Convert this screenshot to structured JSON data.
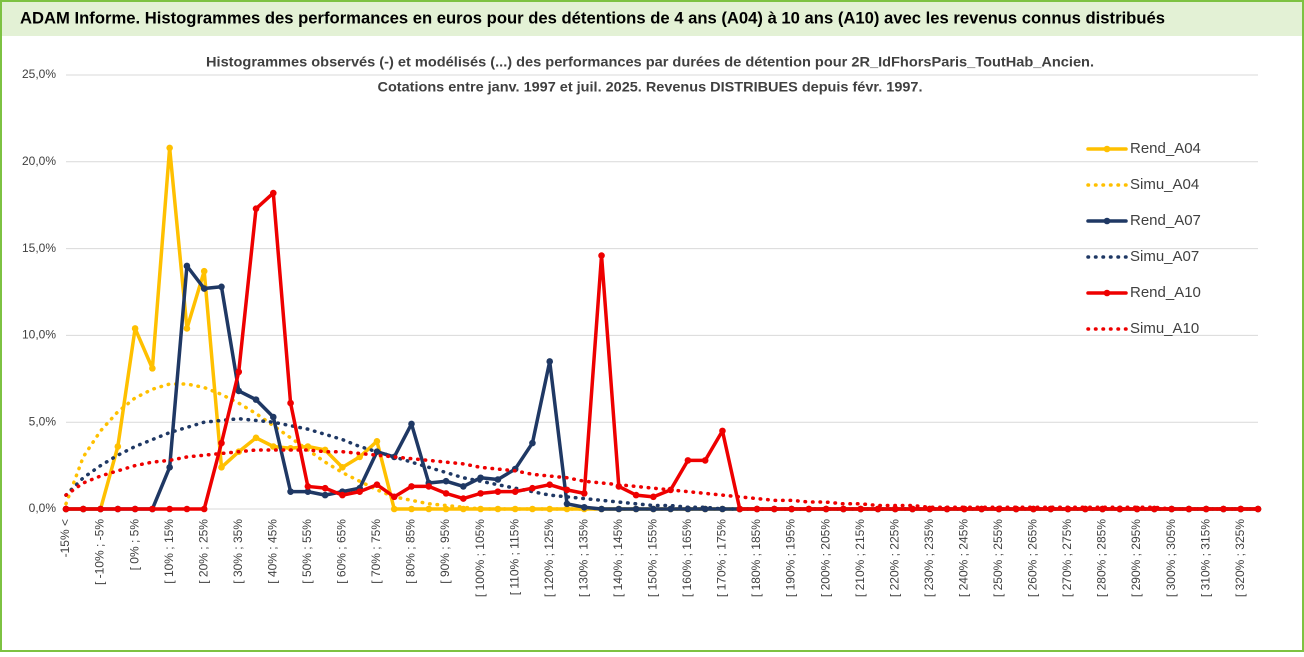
{
  "header": {
    "title": "ADAM Informe. Histogrammes des performances en euros pour des détentions de 4 ans (A04) à 10 ans (A10) avec les revenus connus distribués"
  },
  "chart_data": {
    "type": "line",
    "title": "Histogrammes observés (-) et modélisés (...) des performances par durées de détention pour 2R_IdFhorsParis_ToutHab_Ancien.",
    "subtitle": "Cotations entre janv. 1997 et juil. 2025. Revenus DISTRIBUES depuis févr. 1997.",
    "categories": [
      "-15% <",
      null,
      "[ -10% ; -5%",
      null,
      "[ 0% ; 5%",
      null,
      "[ 10% ; 15%",
      null,
      "[ 20% ; 25%",
      null,
      "[ 30% ; 35%",
      null,
      "[ 40% ; 45%",
      null,
      "[ 50% ; 55%",
      null,
      "[ 60% ; 65%",
      null,
      "[ 70% ; 75%",
      null,
      "[ 80% ; 85%",
      null,
      "[ 90% ; 95%",
      null,
      "[ 100% ; 105%",
      null,
      "[ 110% ; 115%",
      null,
      "[ 120% ; 125%",
      null,
      "[ 130% ; 135%",
      null,
      "[ 140% ; 145%",
      null,
      "[ 150% ; 155%",
      null,
      "[ 160% ; 165%",
      null,
      "[ 170% ; 175%",
      null,
      "[ 180% ; 185%",
      null,
      "[ 190% ; 195%",
      null,
      "[ 200% ; 205%",
      null,
      "[ 210% ; 215%",
      null,
      "[ 220% ; 225%",
      null,
      "[ 230% ; 235%",
      null,
      "[ 240% ; 245%",
      null,
      "[ 250% ; 255%",
      null,
      "[ 260% ; 265%",
      null,
      "[ 270% ; 275%",
      null,
      "[ 280% ; 285%",
      null,
      "[ 290% ; 295%",
      null,
      "[ 300% ; 305%",
      null,
      "[ 310% ; 315%",
      null,
      "[ 320% ; 325%",
      null
    ],
    "series": [
      {
        "name": "Rend_A04",
        "color": "#ffc000",
        "style": "solid",
        "marker": true,
        "values": [
          0,
          0,
          0,
          3.6,
          10.4,
          8.1,
          20.8,
          10.4,
          13.7,
          2.4,
          3.3,
          4.1,
          3.6,
          3.5,
          3.6,
          3.4,
          2.4,
          3.0,
          3.9,
          0,
          0,
          0,
          0,
          0,
          0,
          0,
          0,
          0,
          0,
          0,
          0,
          0,
          0,
          0,
          0,
          0,
          0,
          0,
          0,
          0,
          0,
          0,
          0,
          0,
          0,
          0,
          0,
          0,
          0,
          0,
          0,
          0,
          0,
          0,
          0,
          0,
          0,
          0,
          0,
          0,
          0,
          0,
          0,
          0,
          0,
          0,
          0,
          0,
          0,
          0
        ]
      },
      {
        "name": "Simu_A04",
        "color": "#ffc000",
        "style": "dotted",
        "marker": false,
        "values": [
          0.3,
          3.0,
          4.5,
          5.6,
          6.4,
          6.9,
          7.2,
          7.2,
          7.0,
          6.6,
          6.1,
          5.5,
          4.8,
          4.1,
          3.4,
          2.7,
          2.1,
          1.6,
          1.1,
          0.7,
          0.5,
          0.3,
          0.2,
          0.1,
          0,
          0,
          0,
          0,
          0,
          0,
          0,
          0,
          0,
          0,
          0,
          0,
          0,
          0,
          0,
          0,
          0,
          0,
          0,
          0,
          0,
          0,
          0,
          0,
          0,
          0,
          0,
          0,
          0,
          0,
          0,
          0,
          0,
          0,
          0,
          0,
          0,
          0,
          0,
          0,
          0,
          0,
          0,
          0,
          0,
          0
        ]
      },
      {
        "name": "Rend_A07",
        "color": "#1f3864",
        "style": "solid",
        "marker": true,
        "values": [
          0,
          0,
          0,
          0,
          0,
          0,
          2.4,
          14.0,
          12.7,
          12.8,
          6.8,
          6.3,
          5.3,
          1.0,
          1.0,
          0.8,
          1.0,
          1.2,
          3.3,
          3.0,
          4.9,
          1.5,
          1.6,
          1.3,
          1.8,
          1.7,
          2.3,
          3.8,
          8.5,
          0.3,
          0.1,
          0,
          0,
          0,
          0,
          0,
          0,
          0,
          0,
          0,
          0,
          0,
          0,
          0,
          0,
          0,
          0,
          0,
          0,
          0,
          0,
          0,
          0,
          0,
          0,
          0,
          0,
          0,
          0,
          0,
          0,
          0,
          0,
          0,
          0,
          0,
          0,
          0,
          0,
          0
        ]
      },
      {
        "name": "Simu_A07",
        "color": "#1f3864",
        "style": "dotted",
        "marker": false,
        "values": [
          0.8,
          1.8,
          2.5,
          3.1,
          3.6,
          4.0,
          4.4,
          4.7,
          5.0,
          5.1,
          5.2,
          5.1,
          5.0,
          4.8,
          4.6,
          4.3,
          4.0,
          3.6,
          3.3,
          3.0,
          2.7,
          2.4,
          2.1,
          1.8,
          1.6,
          1.4,
          1.2,
          1.0,
          0.8,
          0.7,
          0.6,
          0.5,
          0.4,
          0.3,
          0.2,
          0.2,
          0.1,
          0.1,
          0,
          0,
          0,
          0,
          0,
          0,
          0,
          0,
          0,
          0,
          0,
          0,
          0,
          0,
          0,
          0,
          0,
          0,
          0,
          0,
          0,
          0,
          0,
          0,
          0,
          0,
          0,
          0,
          0,
          0,
          0,
          0
        ]
      },
      {
        "name": "Rend_A10",
        "color": "#ee0000",
        "style": "solid",
        "marker": true,
        "values": [
          0,
          0,
          0,
          0,
          0,
          0,
          0,
          0,
          0,
          3.8,
          7.9,
          17.3,
          18.2,
          6.1,
          1.3,
          1.2,
          0.8,
          1.0,
          1.4,
          0.7,
          1.3,
          1.3,
          0.9,
          0.6,
          0.9,
          1.0,
          1.0,
          1.2,
          1.4,
          1.1,
          0.9,
          14.6,
          1.3,
          0.8,
          0.7,
          1.1,
          2.8,
          2.8,
          4.5,
          0,
          0,
          0,
          0,
          0,
          0,
          0,
          0,
          0,
          0,
          0,
          0,
          0,
          0,
          0,
          0,
          0,
          0,
          0,
          0,
          0,
          0,
          0,
          0,
          0,
          0,
          0,
          0,
          0,
          0,
          0
        ]
      },
      {
        "name": "Simu_A10",
        "color": "#ee0000",
        "style": "dotted",
        "marker": false,
        "values": [
          0.8,
          1.5,
          1.9,
          2.2,
          2.5,
          2.7,
          2.8,
          3.0,
          3.1,
          3.2,
          3.3,
          3.4,
          3.4,
          3.4,
          3.4,
          3.3,
          3.3,
          3.2,
          3.1,
          3.0,
          2.9,
          2.8,
          2.7,
          2.6,
          2.4,
          2.3,
          2.2,
          2.0,
          1.9,
          1.8,
          1.6,
          1.5,
          1.4,
          1.3,
          1.2,
          1.1,
          1.0,
          0.9,
          0.8,
          0.7,
          0.6,
          0.5,
          0.5,
          0.4,
          0.4,
          0.3,
          0.3,
          0.2,
          0.2,
          0.2,
          0.1,
          0.1,
          0.1,
          0.1,
          0.1,
          0.1,
          0.1,
          0.1,
          0.1,
          0.1,
          0.1,
          0.1,
          0.1,
          0.1,
          0,
          0,
          0,
          0,
          0,
          0
        ]
      }
    ],
    "ylim": [
      0,
      25
    ],
    "yticks": [
      {
        "value": 0,
        "label": "0,0%"
      },
      {
        "value": 5,
        "label": "5,0%"
      },
      {
        "value": 10,
        "label": "10,0%"
      },
      {
        "value": 15,
        "label": "15,0%"
      },
      {
        "value": 20,
        "label": "20,0%"
      },
      {
        "value": 25,
        "label": "25,0%"
      }
    ],
    "grid": true,
    "legend": "right"
  }
}
